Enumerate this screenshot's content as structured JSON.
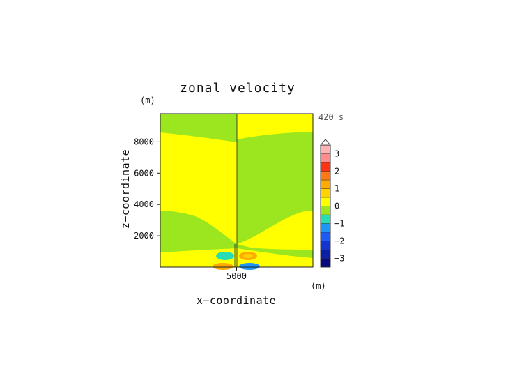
{
  "chart_data": {
    "type": "heatmap",
    "title": "zonal velocity",
    "xlabel": "x−coordinate",
    "ylabel": "z−coordinate",
    "x_unit": "(m)",
    "z_unit": "(m)",
    "time_label": "420 s",
    "xlim": [
      0,
      10000
    ],
    "ylim": [
      0,
      9800
    ],
    "x_ticks": [
      {
        "value": 5000,
        "label": "5000"
      }
    ],
    "y_ticks": [
      {
        "value": 2000,
        "label": "2000"
      },
      {
        "value": 4000,
        "label": "4000"
      },
      {
        "value": 6000,
        "label": "6000"
      },
      {
        "value": 8000,
        "label": "8000"
      }
    ],
    "colorbar": {
      "range": [
        -3.5,
        3.5
      ],
      "levels": [
        {
          "from": -3.5,
          "to": -3.0,
          "color": "#0a0a80"
        },
        {
          "from": -3.0,
          "to": -2.5,
          "color": "#0a1ea8"
        },
        {
          "from": -2.5,
          "to": -2.0,
          "color": "#1434d2"
        },
        {
          "from": -2.0,
          "to": -1.5,
          "color": "#1e5af5"
        },
        {
          "from": -1.5,
          "to": -1.0,
          "color": "#1e96f5"
        },
        {
          "from": -1.0,
          "to": -0.5,
          "color": "#28dcb4"
        },
        {
          "from": -0.5,
          "to": 0.0,
          "color": "#9be61e"
        },
        {
          "from": 0.0,
          "to": 0.5,
          "color": "#ffff00"
        },
        {
          "from": 0.5,
          "to": 1.0,
          "color": "#ffd200"
        },
        {
          "from": 1.0,
          "to": 1.5,
          "color": "#ffaa00"
        },
        {
          "from": 1.5,
          "to": 2.0,
          "color": "#ff7814"
        },
        {
          "from": 2.0,
          "to": 2.5,
          "color": "#ff3214"
        },
        {
          "from": 2.5,
          "to": 3.0,
          "color": "#ff8c8c"
        },
        {
          "from": 3.0,
          "to": 3.5,
          "color": "#ffb4b4"
        }
      ],
      "tick_labels": [
        {
          "value": 3,
          "label": "3"
        },
        {
          "value": 2,
          "label": "2"
        },
        {
          "value": 1,
          "label": "1"
        },
        {
          "value": 0,
          "label": "0"
        },
        {
          "value": -1,
          "label": "−1"
        },
        {
          "value": -2,
          "label": "−2"
        },
        {
          "value": -3,
          "label": "−3"
        }
      ],
      "extend": "max"
    },
    "colors": {
      "positive_fill": "#ffff00",
      "negative_fill": "#9be61e",
      "cyan_feature": "#28dcb4",
      "orange_feature": "#ffaa00",
      "blue_feature": "#1e96f5"
    },
    "grid": false
  }
}
